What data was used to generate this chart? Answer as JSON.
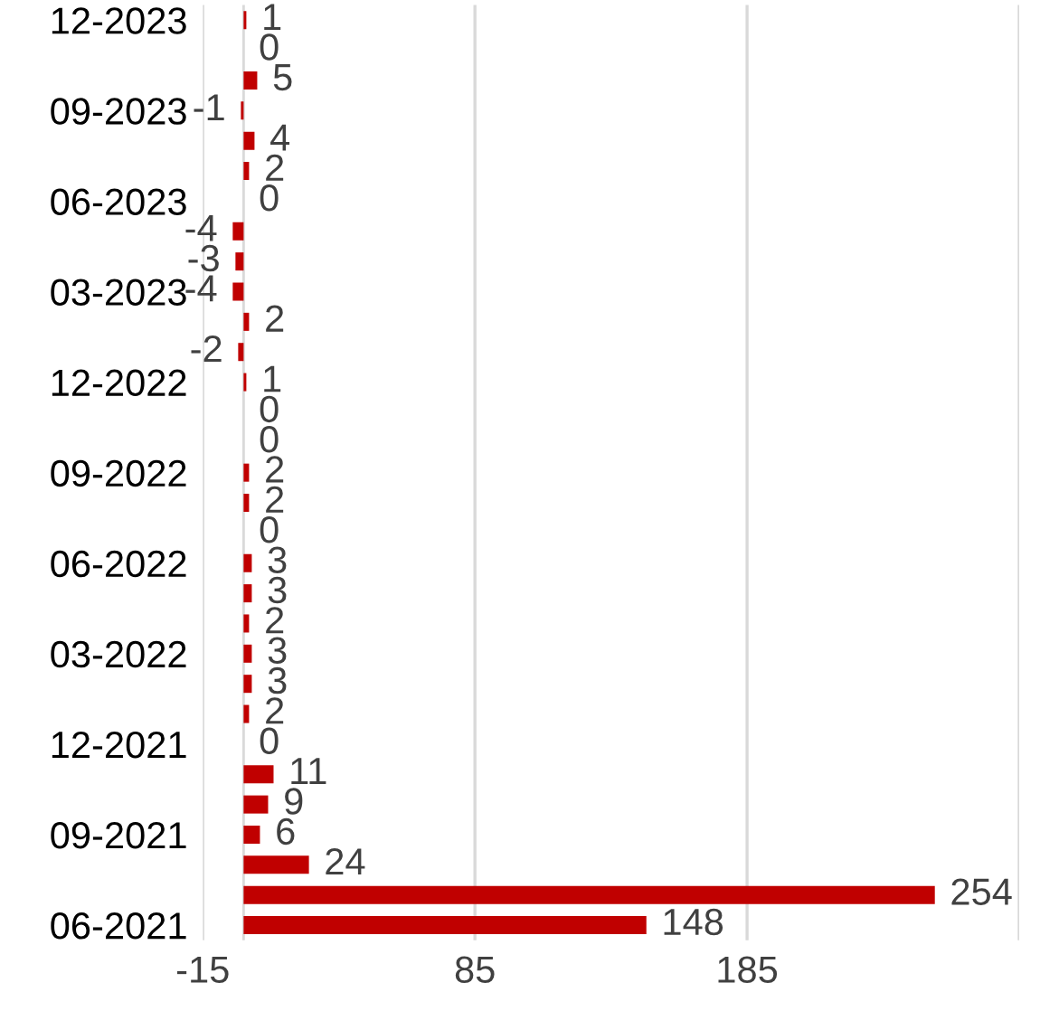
{
  "chart_data": {
    "type": "bar",
    "orientation": "horizontal",
    "categories": [
      "12-2023",
      null,
      null,
      "09-2023",
      null,
      null,
      "06-2023",
      null,
      null,
      "03-2023",
      null,
      null,
      "12-2022",
      null,
      null,
      "09-2022",
      null,
      null,
      "06-2022",
      null,
      null,
      "03-2022",
      null,
      null,
      "12-2021",
      null,
      null,
      "09-2021",
      null,
      null,
      "06-2021"
    ],
    "values": [
      1,
      0,
      5,
      -1,
      4,
      2,
      0,
      -4,
      -3,
      -4,
      2,
      -2,
      1,
      0,
      0,
      2,
      2,
      0,
      3,
      3,
      2,
      3,
      3,
      2,
      0,
      11,
      9,
      6,
      24,
      254,
      148
    ],
    "color": "#c00000",
    "xlim": [
      -15,
      285
    ],
    "xticks": [
      -15,
      85,
      185,
      {
        "value": 285,
        "label": null
      }
    ],
    "grid": "x",
    "data_labels": true
  }
}
